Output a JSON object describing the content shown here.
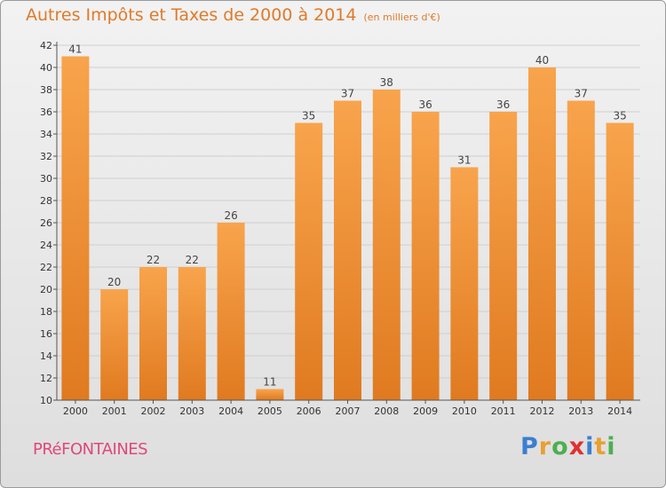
{
  "title": "Autres Impôts et Taxes de 2000 à 2014",
  "unit": "(en milliers d'€)",
  "commune": "PRéFONTAINES",
  "logo": {
    "text": "Proxiti",
    "letters": [
      {
        "ch": "P",
        "color": "#3b7fd0"
      },
      {
        "ch": "r",
        "color": "#e8a030"
      },
      {
        "ch": "o",
        "color": "#4caf50"
      },
      {
        "ch": "x",
        "color": "#e03030"
      },
      {
        "ch": "i",
        "color": "#3b7fd0"
      },
      {
        "ch": "t",
        "color": "#e8a030"
      },
      {
        "ch": "i",
        "color": "#4caf50"
      }
    ]
  },
  "colors": {
    "title": "#e07a2a",
    "bar_light": "#f8a44c",
    "bar_dark": "#e07a20",
    "grid": "#cfcfcf",
    "commune": "#e0487a"
  },
  "chart_data": {
    "type": "bar",
    "categories": [
      "2000",
      "2001",
      "2002",
      "2003",
      "2004",
      "2005",
      "2006",
      "2007",
      "2008",
      "2009",
      "2010",
      "2011",
      "2012",
      "2013",
      "2014"
    ],
    "values": [
      41,
      20,
      22,
      22,
      26,
      11,
      35,
      37,
      38,
      36,
      31,
      36,
      40,
      37,
      35
    ],
    "ylim": [
      10,
      42
    ],
    "yticks": [
      10,
      12,
      14,
      16,
      18,
      20,
      22,
      24,
      26,
      28,
      30,
      32,
      34,
      36,
      38,
      40,
      42
    ],
    "grid": true,
    "legend": "none"
  }
}
